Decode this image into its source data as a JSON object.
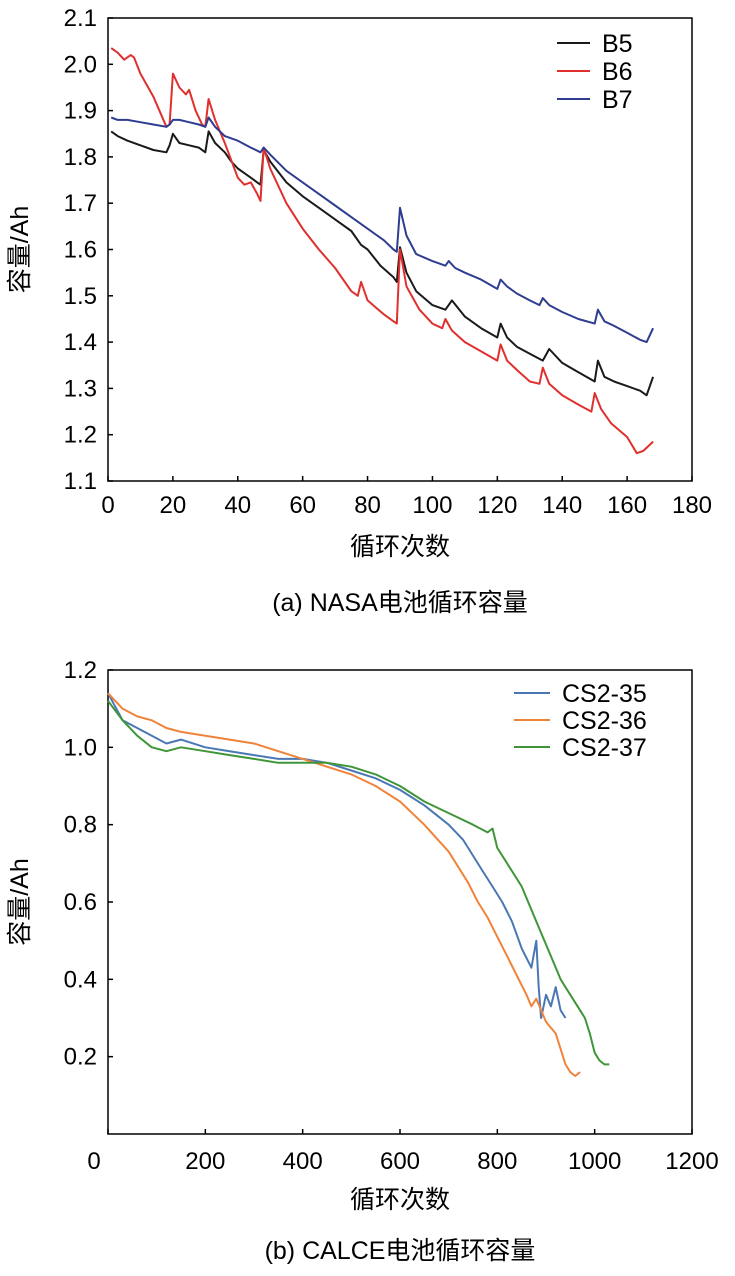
{
  "chart_data": [
    {
      "type": "line",
      "caption": "(a) NASA电池循环容量",
      "xlabel": "循环次数",
      "ylabel": "容量/Ah",
      "xlim": [
        0,
        180
      ],
      "ylim": [
        1.1,
        2.1
      ],
      "xticks": [
        0,
        20,
        40,
        60,
        80,
        100,
        120,
        140,
        160,
        180
      ],
      "yticks": [
        "1.1",
        "1.2",
        "1.3",
        "1.4",
        "1.5",
        "1.6",
        "1.7",
        "1.8",
        "1.9",
        "2.0",
        "2.1"
      ],
      "legend_position": "top-right",
      "series": [
        {
          "name": "B5",
          "color": "#1a1a1a",
          "x": [
            1,
            3,
            6,
            10,
            14,
            18,
            19,
            20,
            22,
            25,
            28,
            30,
            31,
            33,
            36,
            38,
            40,
            42,
            44,
            46,
            47,
            48,
            50,
            55,
            60,
            65,
            70,
            75,
            78,
            80,
            84,
            88,
            89,
            90,
            92,
            95,
            100,
            104,
            106,
            110,
            115,
            120,
            121,
            123,
            126,
            130,
            134,
            136,
            140,
            145,
            150,
            151,
            153,
            156,
            160,
            164,
            166,
            168
          ],
          "values": [
            1.855,
            1.845,
            1.835,
            1.825,
            1.815,
            1.81,
            1.825,
            1.85,
            1.83,
            1.825,
            1.82,
            1.81,
            1.855,
            1.83,
            1.81,
            1.79,
            1.775,
            1.765,
            1.755,
            1.745,
            1.74,
            1.815,
            1.79,
            1.745,
            1.715,
            1.69,
            1.665,
            1.64,
            1.61,
            1.6,
            1.565,
            1.54,
            1.53,
            1.605,
            1.55,
            1.51,
            1.48,
            1.47,
            1.49,
            1.455,
            1.43,
            1.41,
            1.44,
            1.41,
            1.39,
            1.375,
            1.36,
            1.385,
            1.355,
            1.335,
            1.315,
            1.36,
            1.325,
            1.315,
            1.305,
            1.295,
            1.285,
            1.325
          ]
        },
        {
          "name": "B6",
          "color": "#e0302e",
          "x": [
            1,
            3,
            5,
            7,
            8,
            10,
            14,
            18,
            19,
            20,
            22,
            24,
            25,
            27,
            29,
            30,
            31,
            33,
            36,
            40,
            42,
            44,
            46,
            47,
            48,
            50,
            55,
            60,
            65,
            70,
            75,
            77,
            78,
            80,
            85,
            88,
            89,
            90,
            92,
            96,
            100,
            103,
            104,
            106,
            110,
            115,
            120,
            121,
            123,
            126,
            130,
            133,
            134,
            136,
            140,
            145,
            149,
            150,
            152,
            155,
            160,
            163,
            165,
            168
          ],
          "values": [
            2.035,
            2.025,
            2.01,
            2.02,
            2.015,
            1.98,
            1.93,
            1.865,
            1.87,
            1.98,
            1.95,
            1.935,
            1.945,
            1.9,
            1.87,
            1.865,
            1.925,
            1.88,
            1.83,
            1.755,
            1.74,
            1.745,
            1.72,
            1.705,
            1.82,
            1.775,
            1.7,
            1.645,
            1.6,
            1.56,
            1.51,
            1.5,
            1.53,
            1.49,
            1.46,
            1.445,
            1.44,
            1.6,
            1.52,
            1.47,
            1.44,
            1.43,
            1.45,
            1.425,
            1.4,
            1.38,
            1.36,
            1.395,
            1.36,
            1.34,
            1.315,
            1.31,
            1.345,
            1.31,
            1.285,
            1.265,
            1.25,
            1.29,
            1.255,
            1.225,
            1.195,
            1.16,
            1.165,
            1.185
          ]
        },
        {
          "name": "B7",
          "color": "#2e3d8f",
          "x": [
            1,
            3,
            6,
            10,
            14,
            18,
            19,
            20,
            22,
            25,
            28,
            30,
            31,
            33,
            36,
            40,
            44,
            47,
            48,
            50,
            55,
            60,
            65,
            70,
            75,
            80,
            85,
            88,
            89,
            90,
            92,
            95,
            100,
            104,
            105,
            107,
            110,
            115,
            120,
            121,
            123,
            126,
            130,
            133,
            134,
            136,
            140,
            145,
            150,
            151,
            153,
            156,
            160,
            164,
            166,
            168
          ],
          "values": [
            1.885,
            1.88,
            1.88,
            1.875,
            1.87,
            1.865,
            1.87,
            1.88,
            1.88,
            1.875,
            1.87,
            1.865,
            1.885,
            1.865,
            1.845,
            1.835,
            1.82,
            1.81,
            1.82,
            1.805,
            1.77,
            1.745,
            1.72,
            1.695,
            1.67,
            1.645,
            1.62,
            1.6,
            1.595,
            1.69,
            1.63,
            1.59,
            1.575,
            1.565,
            1.575,
            1.56,
            1.55,
            1.535,
            1.515,
            1.535,
            1.52,
            1.505,
            1.49,
            1.48,
            1.495,
            1.48,
            1.465,
            1.45,
            1.44,
            1.47,
            1.445,
            1.435,
            1.42,
            1.405,
            1.4,
            1.43
          ]
        }
      ]
    },
    {
      "type": "line",
      "caption": "(b) CALCE电池循环容量",
      "xlabel": "循环次数",
      "ylabel": "容量/Ah",
      "xlim": [
        0,
        1200
      ],
      "ylim": [
        0,
        1.2
      ],
      "xticks": [
        0,
        200,
        400,
        600,
        800,
        1000,
        1200
      ],
      "yticks": [
        "0.2",
        "0.4",
        "0.6",
        "0.8",
        "1.0",
        "1.2"
      ],
      "legend_position": "top-right",
      "series": [
        {
          "name": "CS2-35",
          "color": "#4a78b4",
          "x": [
            0,
            30,
            60,
            90,
            120,
            150,
            200,
            250,
            300,
            350,
            400,
            450,
            500,
            550,
            600,
            650,
            700,
            730,
            750,
            770,
            790,
            810,
            830,
            850,
            870,
            880,
            885,
            890,
            900,
            910,
            920,
            930,
            940
          ],
          "values": [
            1.14,
            1.07,
            1.05,
            1.03,
            1.01,
            1.02,
            1.0,
            0.99,
            0.98,
            0.97,
            0.97,
            0.96,
            0.94,
            0.92,
            0.89,
            0.85,
            0.8,
            0.76,
            0.72,
            0.68,
            0.64,
            0.6,
            0.55,
            0.48,
            0.43,
            0.5,
            0.38,
            0.3,
            0.36,
            0.33,
            0.38,
            0.32,
            0.3
          ]
        },
        {
          "name": "CS2-36",
          "color": "#f0833a",
          "x": [
            0,
            30,
            60,
            90,
            120,
            150,
            200,
            250,
            300,
            350,
            400,
            450,
            500,
            550,
            600,
            650,
            700,
            720,
            740,
            760,
            780,
            800,
            820,
            840,
            860,
            870,
            880,
            900,
            920,
            930,
            940,
            950,
            960,
            970
          ],
          "values": [
            1.14,
            1.1,
            1.08,
            1.07,
            1.05,
            1.04,
            1.03,
            1.02,
            1.01,
            0.99,
            0.97,
            0.95,
            0.93,
            0.9,
            0.86,
            0.8,
            0.73,
            0.69,
            0.65,
            0.6,
            0.56,
            0.51,
            0.46,
            0.41,
            0.36,
            0.33,
            0.35,
            0.29,
            0.26,
            0.22,
            0.18,
            0.16,
            0.15,
            0.16
          ]
        },
        {
          "name": "CS2-37",
          "color": "#3f9638",
          "x": [
            0,
            30,
            60,
            90,
            120,
            150,
            200,
            250,
            300,
            350,
            400,
            450,
            500,
            550,
            600,
            650,
            700,
            750,
            780,
            790,
            800,
            820,
            850,
            870,
            890,
            910,
            930,
            950,
            970,
            980,
            990,
            1000,
            1010,
            1020,
            1030
          ],
          "values": [
            1.12,
            1.07,
            1.03,
            1.0,
            0.99,
            1.0,
            0.99,
            0.98,
            0.97,
            0.96,
            0.96,
            0.96,
            0.95,
            0.93,
            0.9,
            0.86,
            0.83,
            0.8,
            0.78,
            0.79,
            0.74,
            0.7,
            0.64,
            0.58,
            0.52,
            0.46,
            0.4,
            0.36,
            0.32,
            0.3,
            0.26,
            0.21,
            0.19,
            0.18,
            0.18
          ]
        }
      ]
    }
  ]
}
